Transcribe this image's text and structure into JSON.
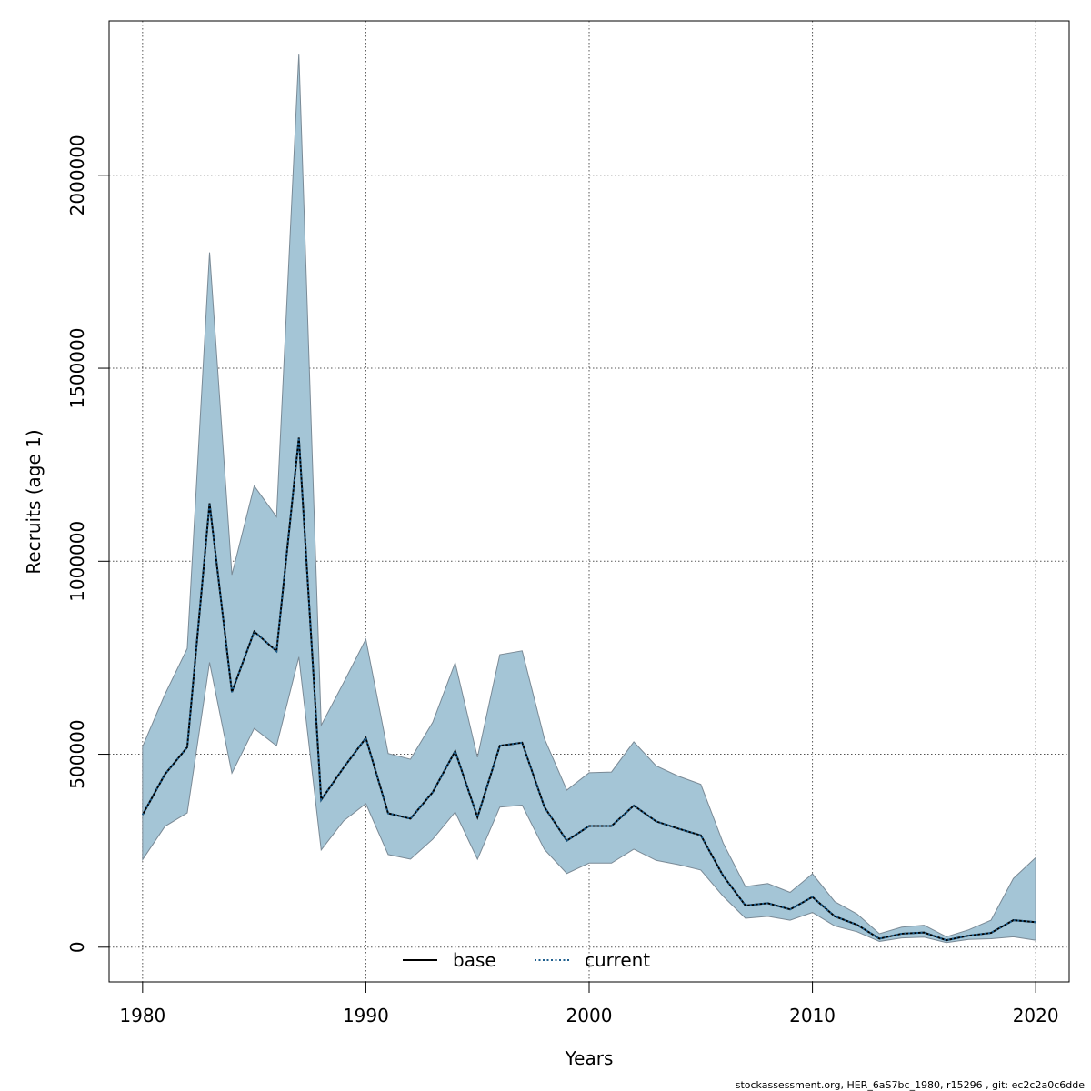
{
  "chart_data": {
    "type": "line",
    "title": "",
    "xlabel": "Years",
    "ylabel": "Recruits (age 1)",
    "xlim": [
      1978.5,
      2021.5
    ],
    "ylim": [
      -90000,
      2400000
    ],
    "x_ticks": [
      1980,
      1990,
      2000,
      2010,
      2020
    ],
    "x_tick_labels": [
      "1980",
      "1990",
      "2000",
      "2010",
      "2020"
    ],
    "y_ticks": [
      0,
      500000,
      1000000,
      1500000,
      2000000
    ],
    "y_tick_labels": [
      "0",
      "500000",
      "1000000",
      "1500000",
      "2000000"
    ],
    "grid": true,
    "legend_position": "bottom-center",
    "x": [
      1980,
      1981,
      1982,
      1983,
      1984,
      1985,
      1986,
      1987,
      1988,
      1989,
      1990,
      1991,
      1992,
      1993,
      1994,
      1995,
      1996,
      1997,
      1998,
      1999,
      2000,
      2001,
      2002,
      2003,
      2004,
      2005,
      2006,
      2007,
      2008,
      2009,
      2010,
      2011,
      2012,
      2013,
      2014,
      2015,
      2016,
      2017,
      2018,
      2019,
      2020
    ],
    "series": [
      {
        "name": "base",
        "line_style": "solid",
        "color": "#000000",
        "values": [
          343000,
          448000,
          518000,
          1150000,
          661000,
          818000,
          767000,
          1320000,
          382000,
          465000,
          542000,
          347000,
          333000,
          402000,
          508000,
          337000,
          522000,
          530000,
          363000,
          276000,
          314000,
          314000,
          367000,
          326000,
          307000,
          290000,
          185000,
          108000,
          114000,
          98000,
          130000,
          80000,
          58000,
          22000,
          35000,
          38000,
          18000,
          30000,
          37000,
          70000,
          65000
        ]
      },
      {
        "name": "current",
        "line_style": "dotted",
        "color": "#1e5f8e",
        "values": [
          343000,
          448000,
          518000,
          1150000,
          661000,
          818000,
          767000,
          1320000,
          382000,
          465000,
          542000,
          347000,
          333000,
          402000,
          508000,
          337000,
          522000,
          530000,
          363000,
          276000,
          314000,
          314000,
          367000,
          326000,
          307000,
          290000,
          185000,
          108000,
          114000,
          98000,
          130000,
          80000,
          58000,
          22000,
          35000,
          38000,
          18000,
          30000,
          37000,
          70000,
          65000
        ]
      }
    ],
    "confidence_band": {
      "fill_color": "#a4c5d6",
      "edge_color": "#7a8a96",
      "lower": [
        227000,
        313000,
        348000,
        738000,
        451000,
        567000,
        522000,
        752000,
        252000,
        327000,
        372000,
        240000,
        228000,
        280000,
        350000,
        228000,
        363000,
        368000,
        253000,
        191000,
        218000,
        218000,
        254000,
        225000,
        214000,
        200000,
        132000,
        75000,
        80000,
        70000,
        90000,
        55000,
        40000,
        15000,
        24000,
        26000,
        12000,
        20000,
        22000,
        27000,
        18000
      ],
      "upper": [
        520000,
        655000,
        774000,
        1800000,
        965000,
        1195000,
        1115000,
        2315000,
        575000,
        685000,
        798000,
        502000,
        487000,
        583000,
        737000,
        492000,
        758000,
        768000,
        540000,
        407000,
        452000,
        454000,
        532000,
        470000,
        443000,
        422000,
        270000,
        157000,
        165000,
        142000,
        190000,
        118000,
        86000,
        35000,
        52000,
        57000,
        27000,
        45000,
        70000,
        178000,
        232000
      ]
    },
    "footer_note": "stockassessment.org, HER_6aS7bc_1980, r15296 , git: ec2c2a0c6dde"
  }
}
